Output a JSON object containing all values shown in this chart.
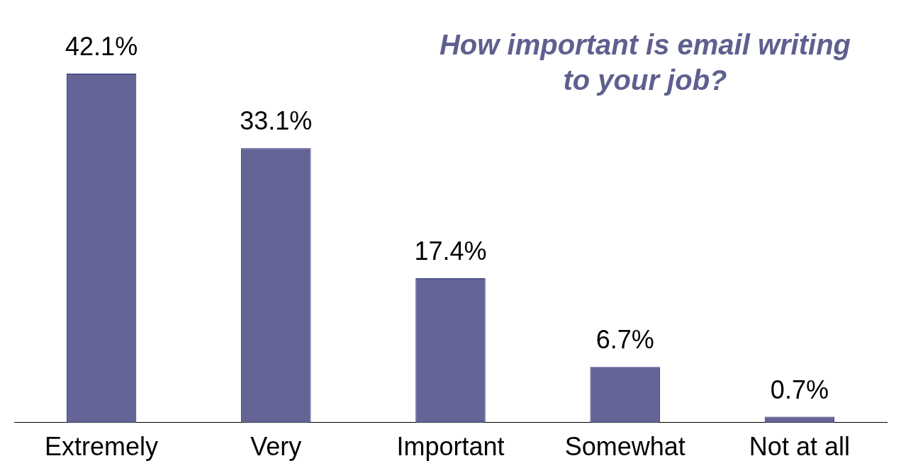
{
  "chart_data": {
    "type": "bar",
    "title": "How important is email writing to your job?",
    "categories": [
      "Extremely",
      "Very",
      "Important",
      "Somewhat",
      "Not at all"
    ],
    "values": [
      42.1,
      33.1,
      17.4,
      6.7,
      0.7
    ],
    "value_labels": [
      "42.1%",
      "33.1%",
      "17.4%",
      "6.7%",
      "0.7%"
    ],
    "color": "#646496",
    "grid": false,
    "legend": false
  }
}
